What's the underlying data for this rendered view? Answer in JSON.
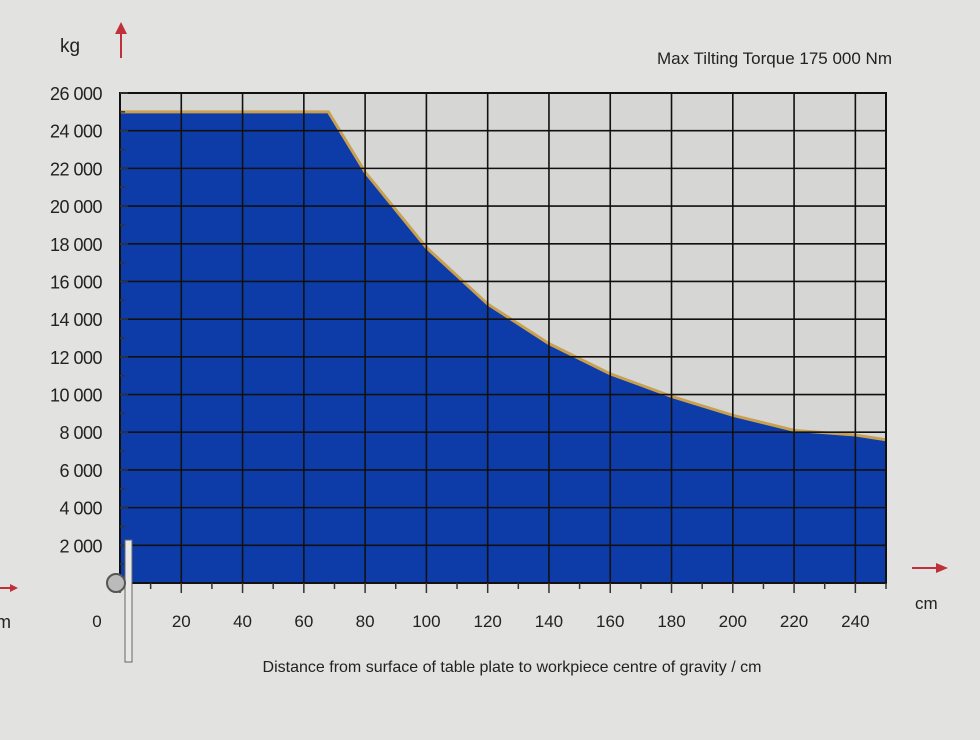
{
  "chart_data": {
    "type": "area",
    "title": "Max Tilting Torque 175 000 Nm",
    "xlabel": "Distance from surface of table plate to workpiece centre of gravity / cm",
    "x_unit": "cm",
    "y_unit": "kg",
    "xlim": [
      0,
      250
    ],
    "ylim": [
      0,
      26000
    ],
    "x_ticks": [
      0,
      20,
      40,
      60,
      80,
      100,
      120,
      140,
      160,
      180,
      200,
      220,
      240
    ],
    "x_tick_labels": [
      "0",
      "20",
      "40",
      "60",
      "80",
      "100",
      "120",
      "140",
      "160",
      "180",
      "200",
      "220",
      "240"
    ],
    "y_ticks": [
      2000,
      4000,
      6000,
      8000,
      10000,
      12000,
      14000,
      16000,
      18000,
      20000,
      22000,
      24000,
      26000
    ],
    "y_tick_labels": [
      "2 000",
      "4 000",
      "6 000",
      "8 000",
      "10 000",
      "12 000",
      "14 000",
      "16 000",
      "18 000",
      "20 000",
      "22 000",
      "24 000",
      "26 000"
    ],
    "grid": true,
    "x": [
      0,
      68,
      80,
      100,
      120,
      140,
      160,
      180,
      200,
      220,
      240,
      250
    ],
    "y": [
      25000,
      25000,
      21800,
      17800,
      14800,
      12700,
      11100,
      9900,
      8900,
      8100,
      7850,
      7600
    ],
    "colors": {
      "fill": "#0d3ca8",
      "outline": "#c9a050",
      "arrow": "#c0303a",
      "grid": "#1a1a1a",
      "background": "#d8d8d8"
    }
  },
  "edge_fragment": "m"
}
